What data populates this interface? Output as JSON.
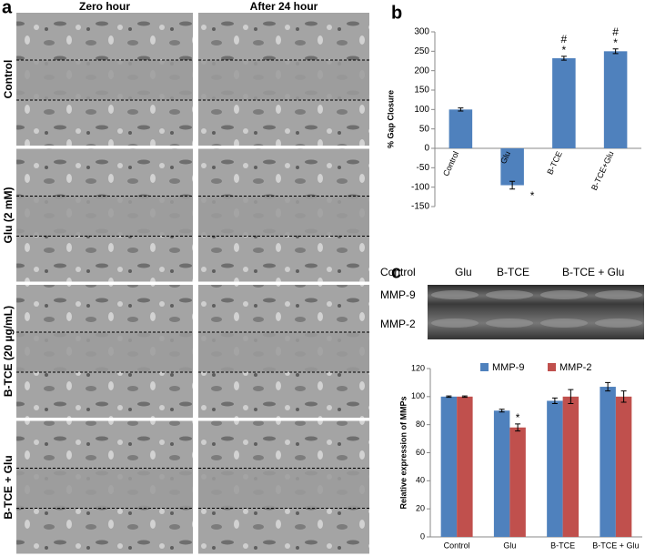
{
  "panel_labels": [
    "a",
    "b",
    "c"
  ],
  "microscopy": {
    "columns": [
      "Zero hour",
      "After 24 hour"
    ],
    "rows": [
      "Control",
      "Glu (2 mM)",
      "B-TCE (20 µg/mL)",
      "B-TCE + Glu"
    ]
  },
  "gel": {
    "lanes": [
      "Control",
      "Glu",
      "B-TCE",
      "B-TCE + Glu"
    ],
    "bands": [
      "MMP-9",
      "MMP-2"
    ]
  },
  "chart_data": [
    {
      "type": "bar",
      "ylabel": "% Gap Closure",
      "categories": [
        "Control",
        "Glu",
        "B-TCE",
        "B-TCE+Glu"
      ],
      "values": [
        100,
        -95,
        232,
        250
      ],
      "errors": [
        4,
        10,
        5,
        6
      ],
      "color": "#4f81bd",
      "ylim": [
        -150,
        300
      ],
      "yticks": [
        -150,
        -100,
        -50,
        0,
        50,
        100,
        150,
        200,
        250,
        300
      ],
      "annotations": [
        {
          "category": "Glu",
          "text": "*"
        },
        {
          "category": "B-TCE",
          "text": "*"
        },
        {
          "category": "B-TCE",
          "text": "#"
        },
        {
          "category": "B-TCE+Glu",
          "text": "*"
        },
        {
          "category": "B-TCE+Glu",
          "text": "#"
        }
      ]
    },
    {
      "type": "grouped_bar",
      "ylabel": "Relative expression of MMPs",
      "categories": [
        "Control",
        "Glu",
        "B-TCE",
        "B-TCE + Glu"
      ],
      "series": [
        {
          "name": "MMP-9",
          "color": "#4f81bd",
          "values": [
            100,
            90,
            97,
            107
          ],
          "errors": [
            0.5,
            1,
            2,
            3
          ]
        },
        {
          "name": "MMP-2",
          "color": "#c0504d",
          "values": [
            100,
            78,
            100,
            100
          ],
          "errors": [
            0.5,
            2.5,
            5,
            4
          ]
        }
      ],
      "ylim": [
        0,
        120
      ],
      "yticks": [
        0,
        20,
        40,
        60,
        80,
        100,
        120
      ],
      "legend": "top",
      "annotations": [
        {
          "category": "Glu",
          "series": "MMP-2",
          "text": "*"
        }
      ]
    }
  ]
}
